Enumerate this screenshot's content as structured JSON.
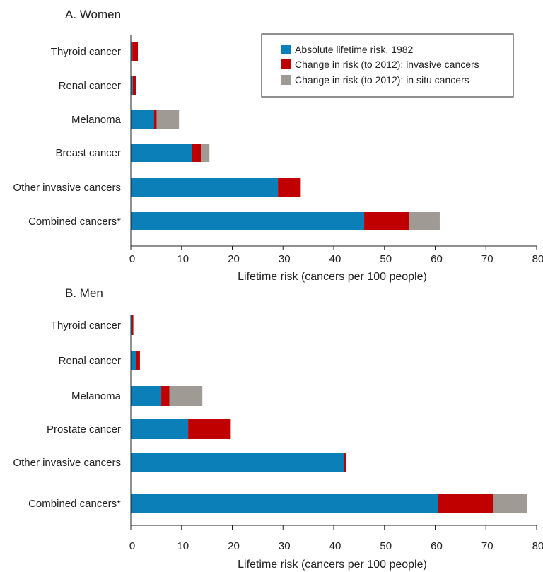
{
  "colors": {
    "absolute_1982": "#0a7fb8",
    "invasive_change": "#c00000",
    "insitu_change": "#a09a94"
  },
  "legend": [
    {
      "label": "Absolute lifetime risk, 1982",
      "color": "#0a7fb8"
    },
    {
      "label": "Change in risk (to 2012): invasive cancers",
      "color": "#c00000"
    },
    {
      "label": "Change in risk (to 2012): in situ cancers",
      "color": "#a09a94"
    }
  ],
  "chart_data": [
    {
      "type": "bar",
      "orientation": "horizontal",
      "stacked": true,
      "title": "A. Women",
      "xlabel": "Lifetime risk (cancers per 100 people)",
      "xlim": [
        0,
        80
      ],
      "xticks": [
        "0",
        "10",
        "20",
        "30",
        "40",
        "50",
        "60",
        "70",
        "80"
      ],
      "categories": [
        "Thyroid cancer",
        "Renal cancer",
        "Melanoma",
        "Breast cancer",
        "Other invasive cancers",
        "Combined cancers*"
      ],
      "series": [
        {
          "name": "Absolute lifetime risk, 1982",
          "values": [
            0.3,
            0.4,
            4.6,
            12.0,
            29.0,
            46.0
          ]
        },
        {
          "name": "Change in risk (to 2012): invasive cancers",
          "values": [
            1.1,
            0.7,
            0.5,
            1.8,
            4.5,
            8.8
          ]
        },
        {
          "name": "Change in risk (to 2012): in situ cancers",
          "values": [
            0,
            0,
            4.4,
            1.7,
            0,
            6.1
          ]
        }
      ]
    },
    {
      "type": "bar",
      "orientation": "horizontal",
      "stacked": true,
      "title": "B. Men",
      "xlabel": "Lifetime risk (cancers per 100 people)",
      "xlim": [
        0,
        80
      ],
      "xticks": [
        "0",
        "10",
        "20",
        "30",
        "40",
        "50",
        "60",
        "70",
        "80"
      ],
      "categories": [
        "Thyroid cancer",
        "Renal cancer",
        "Melanoma",
        "Prostate cancer",
        "Other invasive cancers",
        "Combined cancers*"
      ],
      "series": [
        {
          "name": "Absolute lifetime risk, 1982",
          "values": [
            0.2,
            1.0,
            6.0,
            11.3,
            42.0,
            60.6
          ]
        },
        {
          "name": "Change in risk (to 2012): invasive cancers",
          "values": [
            0.3,
            0.8,
            1.6,
            8.4,
            0.4,
            10.8
          ]
        },
        {
          "name": "Change in risk (to 2012): in situ cancers",
          "values": [
            0,
            0,
            6.5,
            0,
            0,
            6.7
          ]
        }
      ]
    }
  ]
}
